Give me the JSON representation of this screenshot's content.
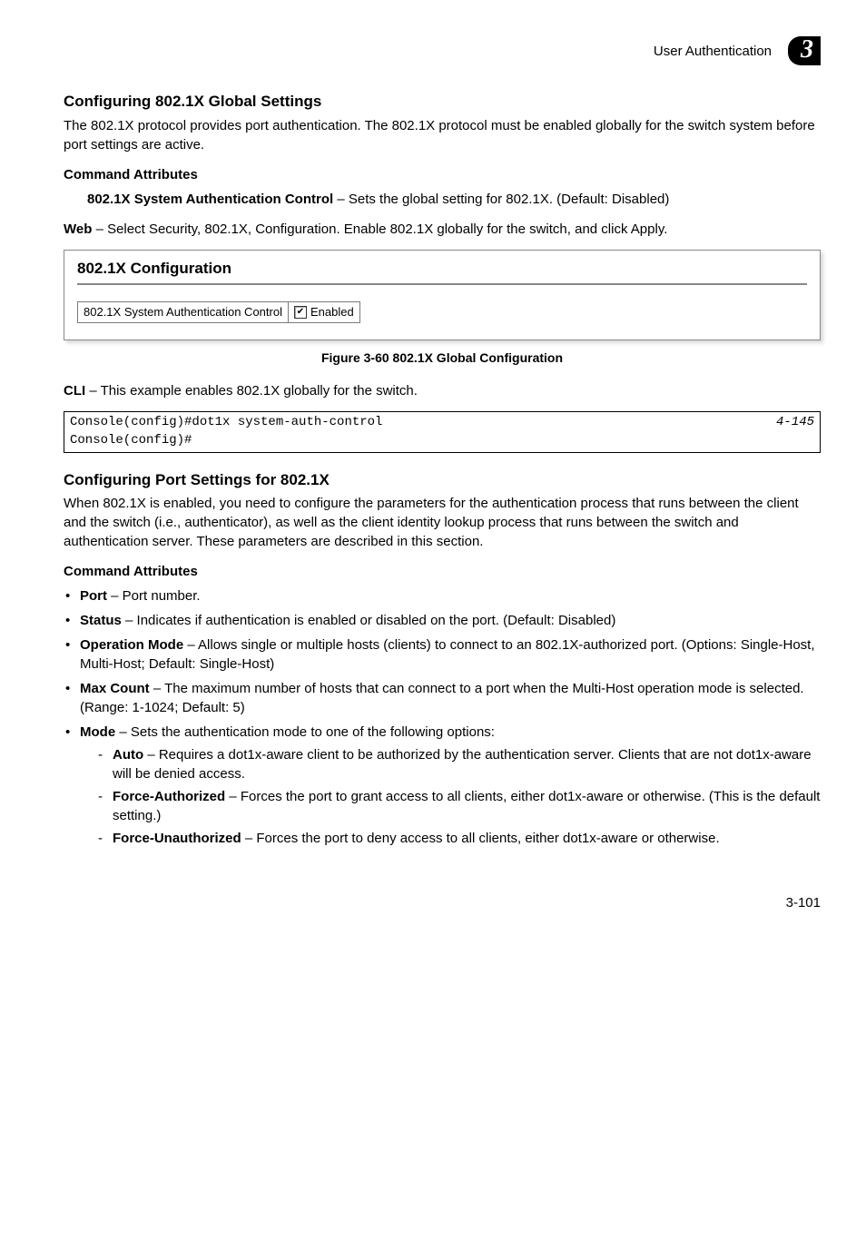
{
  "header": {
    "breadcrumb": "User Authentication",
    "chapter": "3"
  },
  "section1": {
    "title": "Configuring 802.1X Global Settings",
    "intro": "The 802.1X protocol provides port authentication. The 802.1X protocol must be enabled globally for the switch system before port settings are active.",
    "cmd_attr_heading": "Command Attributes",
    "attr_name": "802.1X System Authentication Control",
    "attr_desc": " – Sets the global setting for 802.1X. (Default: Disabled)",
    "web_label": "Web",
    "web_text": " – Select Security, 802.1X, Configuration. Enable 802.1X globally for the switch, and click Apply.",
    "screenshot": {
      "title": "802.1X Configuration",
      "field_label": "802.1X System Authentication Control",
      "checkbox_checked": true,
      "checkbox_label": "Enabled"
    },
    "figure_caption": "Figure 3-60  802.1X Global Configuration",
    "cli_label": "CLI",
    "cli_text": " – This example enables 802.1X globally for the switch.",
    "code_lines": "Console(config)#dot1x system-auth-control\nConsole(config)#",
    "code_ref": "4-145"
  },
  "section2": {
    "title": "Configuring Port Settings for 802.1X",
    "intro": "When 802.1X is enabled, you need to configure the parameters for the authentication process that runs between the client and the switch (i.e., authenticator), as well as the client identity lookup process that runs between the switch and authentication server. These parameters are described in this section.",
    "cmd_attr_heading": "Command Attributes",
    "bullets": [
      {
        "name": "Port",
        "desc": " – Port number."
      },
      {
        "name": "Status",
        "desc": " – Indicates if authentication is enabled or disabled on the port. (Default: Disabled)"
      },
      {
        "name": "Operation Mode",
        "desc": " – Allows single or multiple hosts (clients) to connect to an 802.1X-authorized port. (Options: Single-Host, Multi-Host; Default: Single-Host)"
      },
      {
        "name": "Max Count",
        "desc": " – The maximum number of hosts that can connect to a port when the Multi-Host operation mode is selected. (Range: 1-1024; Default: 5)"
      },
      {
        "name": "Mode",
        "desc": " – Sets the authentication mode to one of the following options:",
        "sub": [
          {
            "name": "Auto",
            "desc": " – Requires a dot1x-aware client to be authorized by the authentication server. Clients that are not dot1x-aware will be denied access."
          },
          {
            "name": "Force-Authorized",
            "desc": " – Forces the port to grant access to all clients, either dot1x-aware or otherwise. (This is the default setting.)"
          },
          {
            "name": "Force-Unauthorized",
            "desc": " – Forces the port to deny access to all clients, either dot1x-aware or otherwise."
          }
        ]
      }
    ]
  },
  "page_number": "3-101"
}
